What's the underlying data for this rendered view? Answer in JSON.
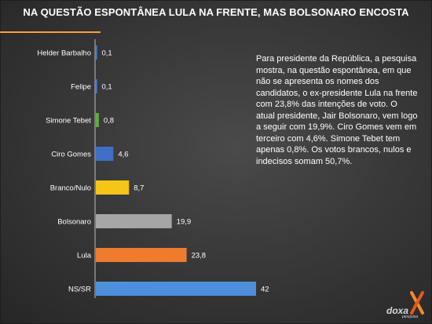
{
  "title": "NA QUESTÃO ESPONTÂNEA LULA NA FRENTE, MAS BOLSONARO ENCOSTA",
  "note": "Para presidente da República, a pesquisa mostra, na questão espontânea, em que não se apresenta os nomes dos candidatos, o ex-presidente Lula na frente com 23,8% das intenções de voto. O atual presidente, Jair Bolsonaro, vem logo a seguir com 19,9%. Ciro Gomes vem em terceiro com 4,6%. Simone Tebet tem apenas 0,8%. Os votos brancos, nulos e indecisos somam 50,7%.",
  "logo": {
    "brand": "doxa",
    "tagline": "pesquisa",
    "accent_color": "#f28c28"
  },
  "colors": {
    "background": "#363636",
    "title_rule": "#f2a33a",
    "axis": "#bdbdbd"
  },
  "chart_data": {
    "type": "bar",
    "orientation": "horizontal",
    "title": "NA QUESTÃO ESPONTÂNEA LULA NA FRENTE, MAS BOLSONARO ENCOSTA",
    "categories": [
      "Helder Barbalho",
      "Felipe",
      "Simone Tebet",
      "Ciro Gomes",
      "Branco/Nulo",
      "Bolsonaro",
      "Lula",
      "NS/SR"
    ],
    "values": [
      0.1,
      0.1,
      0.8,
      4.6,
      8.7,
      19.9,
      23.8,
      42
    ],
    "value_labels": [
      "0,1",
      "0,1",
      "0,8",
      "4,6",
      "8,7",
      "19,9",
      "23,8",
      "42"
    ],
    "colors": [
      "#4a7fd0",
      "#4a7fd0",
      "#5fae3c",
      "#3f6fc4",
      "#f5c518",
      "#a6a6a6",
      "#ef7b2e",
      "#4e8fdc"
    ],
    "xlim": [
      0,
      42
    ],
    "xlabel": "",
    "ylabel": "",
    "grid": false,
    "legend": "none"
  }
}
